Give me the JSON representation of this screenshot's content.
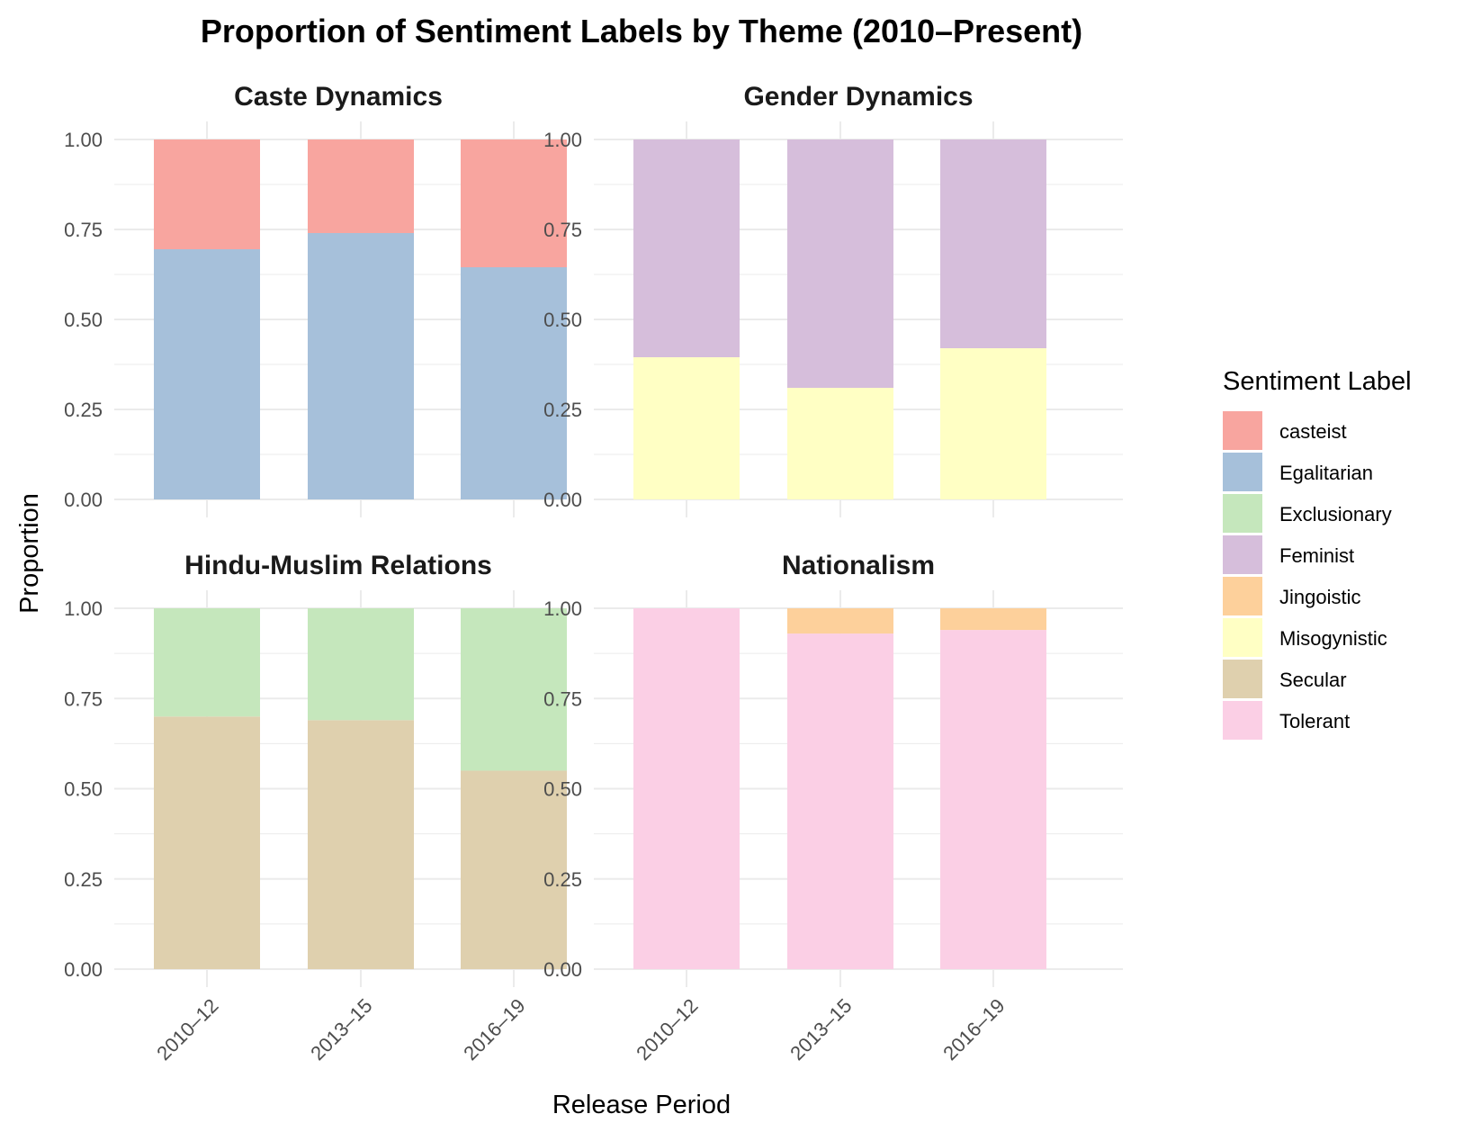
{
  "chart_data": {
    "type": "bar",
    "stacked": true,
    "title": "Proportion of Sentiment Labels by Theme (2010–Present)",
    "xlabel": "Release Period",
    "ylabel": "Proportion",
    "categories": [
      "2010–12",
      "2013–15",
      "2016–19"
    ],
    "ylim": [
      0,
      1
    ],
    "yticks": [
      "0.00",
      "0.25",
      "0.50",
      "0.75",
      "1.00"
    ],
    "grid": true,
    "legend": {
      "title": "Sentiment Label",
      "placement": "right",
      "entries": [
        {
          "label": "casteist",
          "color": "#F8A59F"
        },
        {
          "label": "Egalitarian",
          "color": "#A6C0DA"
        },
        {
          "label": "Exclusionary",
          "color": "#C5E7BC"
        },
        {
          "label": "Feminist",
          "color": "#D6BEDB"
        },
        {
          "label": "Jingoistic",
          "color": "#FDD09B"
        },
        {
          "label": "Misogynistic",
          "color": "#FFFFC4"
        },
        {
          "label": "Secular",
          "color": "#DFD0AE"
        },
        {
          "label": "Tolerant",
          "color": "#FBCFE5"
        }
      ]
    },
    "panels": [
      {
        "title": "Caste Dynamics",
        "series": [
          {
            "name": "Egalitarian",
            "values": [
              0.695,
              0.74,
              0.645
            ]
          },
          {
            "name": "casteist",
            "values": [
              0.305,
              0.26,
              0.355
            ]
          }
        ]
      },
      {
        "title": "Gender Dynamics",
        "series": [
          {
            "name": "Misogynistic",
            "values": [
              0.395,
              0.31,
              0.42
            ]
          },
          {
            "name": "Feminist",
            "values": [
              0.605,
              0.69,
              0.58
            ]
          }
        ]
      },
      {
        "title": "Hindu-Muslim Relations",
        "series": [
          {
            "name": "Secular",
            "values": [
              0.7,
              0.69,
              0.55
            ]
          },
          {
            "name": "Exclusionary",
            "values": [
              0.3,
              0.31,
              0.45
            ]
          }
        ]
      },
      {
        "title": "Nationalism",
        "series": [
          {
            "name": "Tolerant",
            "values": [
              1.0,
              0.93,
              0.94
            ]
          },
          {
            "name": "Jingoistic",
            "values": [
              0.0,
              0.07,
              0.06
            ]
          }
        ]
      }
    ]
  }
}
